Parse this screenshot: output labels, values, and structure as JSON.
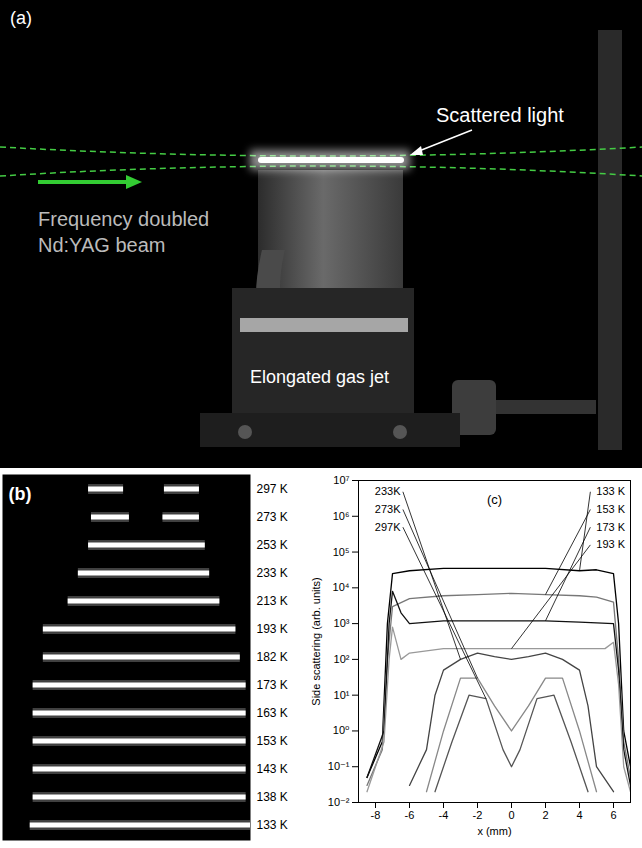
{
  "panel_a": {
    "letter": "(a)",
    "scattered_light": "Scattered light",
    "beam": [
      "Frequency doubled",
      "Nd:YAG beam"
    ],
    "gas_jet": "Elongated gas jet"
  },
  "panel_b": {
    "letter": "(b)",
    "xlim": [
      -9,
      8
    ],
    "rows": [
      {
        "label": "297 K",
        "segments": [
          [
            -3.1,
            -0.7
          ],
          [
            2.1,
            4.5
          ]
        ]
      },
      {
        "label": "273 K",
        "segments": [
          [
            -2.9,
            -0.3
          ],
          [
            2.0,
            4.5
          ]
        ]
      },
      {
        "label": "253 K",
        "segments": [
          [
            -3.1,
            4.9
          ]
        ]
      },
      {
        "label": "233 K",
        "segments": [
          [
            -3.8,
            5.2
          ]
        ]
      },
      {
        "label": "213 K",
        "segments": [
          [
            -4.5,
            5.9
          ]
        ]
      },
      {
        "label": "193 K",
        "segments": [
          [
            -6.2,
            7.0
          ]
        ]
      },
      {
        "label": "182 K",
        "segments": [
          [
            -6.2,
            7.3
          ]
        ]
      },
      {
        "label": "173 K",
        "segments": [
          [
            -6.9,
            7.7
          ]
        ]
      },
      {
        "label": "163 K",
        "segments": [
          [
            -6.9,
            7.7
          ]
        ]
      },
      {
        "label": "153 K",
        "segments": [
          [
            -6.9,
            7.7
          ]
        ]
      },
      {
        "label": "143 K",
        "segments": [
          [
            -6.9,
            7.7
          ]
        ]
      },
      {
        "label": "138 K",
        "segments": [
          [
            -6.9,
            7.7
          ]
        ]
      },
      {
        "label": "133 K",
        "segments": [
          [
            -7.1,
            8.0
          ]
        ]
      }
    ]
  },
  "chart_data": {
    "type": "line",
    "title": "(c)",
    "xlabel": "x (mm)",
    "ylabel": "Side scattering (arb. units)",
    "log": "y",
    "xlim": [
      -9,
      7
    ],
    "xticks": [
      -8,
      -6,
      -4,
      -2,
      0,
      2,
      4,
      6
    ],
    "ylim": [
      0.01,
      10000000
    ],
    "yticks": [
      {
        "value": 0.01,
        "label": "10⁻²"
      },
      {
        "value": 0.1,
        "label": "10⁻¹"
      },
      {
        "value": 1,
        "label": "10⁰"
      },
      {
        "value": 10,
        "label": "10¹"
      },
      {
        "value": 100,
        "label": "10²"
      },
      {
        "value": 1000,
        "label": "10³"
      },
      {
        "value": 10000,
        "label": "10⁴"
      },
      {
        "value": 100000,
        "label": "10⁵"
      },
      {
        "value": 1000000,
        "label": "10⁶"
      },
      {
        "value": 10000000,
        "label": "10⁷"
      }
    ],
    "series": [
      {
        "name": "133 K",
        "color": "#000000",
        "x": [
          -8.5,
          -7.6,
          -7.3,
          -7,
          -6,
          -4,
          -2,
          0,
          2,
          4,
          5,
          6,
          6.3,
          6.6,
          7
        ],
        "values": [
          0.05,
          0.5,
          1000,
          25000,
          30000,
          35000,
          35000,
          35000,
          35000,
          30000,
          32000,
          25000,
          1000,
          1,
          0.1
        ]
      },
      {
        "name": "153 K",
        "color": "#777777",
        "x": [
          -8.5,
          -7.6,
          -7.3,
          -7,
          -6,
          -4,
          -2,
          0,
          2,
          4,
          5,
          6,
          6.3,
          6.6,
          7
        ],
        "values": [
          0.03,
          0.3,
          100,
          3000,
          5000,
          6000,
          6500,
          7000,
          6500,
          6000,
          5500,
          4000,
          100,
          0.5,
          0.05
        ]
      },
      {
        "name": "173 K",
        "color": "#111111",
        "x": [
          -8.5,
          -7.5,
          -7.2,
          -7,
          -6.5,
          -6,
          -4,
          -2,
          0,
          2,
          4,
          6,
          6.3,
          6.6,
          7
        ],
        "values": [
          0.05,
          1,
          1000,
          8000,
          2000,
          1000,
          1200,
          1200,
          1200,
          1200,
          1100,
          1000,
          50,
          0.3,
          0.03
        ]
      },
      {
        "name": "193 K",
        "color": "#999999",
        "x": [
          -8.5,
          -7.5,
          -7.2,
          -7,
          -6.5,
          -6,
          -4,
          -2,
          0,
          2,
          4,
          5.5,
          6,
          6.3,
          6.6,
          7
        ],
        "values": [
          0.02,
          0.5,
          100,
          800,
          100,
          150,
          200,
          200,
          200,
          200,
          200,
          200,
          300,
          20,
          0.1,
          0.02
        ]
      },
      {
        "name": "233K",
        "color": "#444444",
        "x": [
          -6,
          -5,
          -4.5,
          -4,
          -3,
          -2,
          -1,
          0,
          1,
          2,
          3,
          4,
          4.5,
          5,
          6
        ],
        "values": [
          0.03,
          0.3,
          10,
          50,
          100,
          150,
          120,
          100,
          120,
          150,
          100,
          50,
          5,
          0.1,
          0.02
        ]
      },
      {
        "name": "273K",
        "color": "#888888",
        "x": [
          -5,
          -4,
          -3,
          -2,
          -1,
          0,
          1,
          2,
          3,
          4,
          5
        ],
        "values": [
          0.02,
          1,
          30,
          30,
          5,
          1,
          5,
          30,
          30,
          1,
          0.02
        ]
      },
      {
        "name": "297K",
        "color": "#555555",
        "x": [
          -4.5,
          -3.5,
          -2.5,
          -1.5,
          -0.5,
          0,
          0.5,
          1.5,
          2.5,
          3.5,
          4.5
        ],
        "values": [
          0.02,
          0.5,
          10,
          8,
          0.3,
          0.1,
          0.3,
          8,
          10,
          0.5,
          0.02
        ]
      }
    ]
  }
}
